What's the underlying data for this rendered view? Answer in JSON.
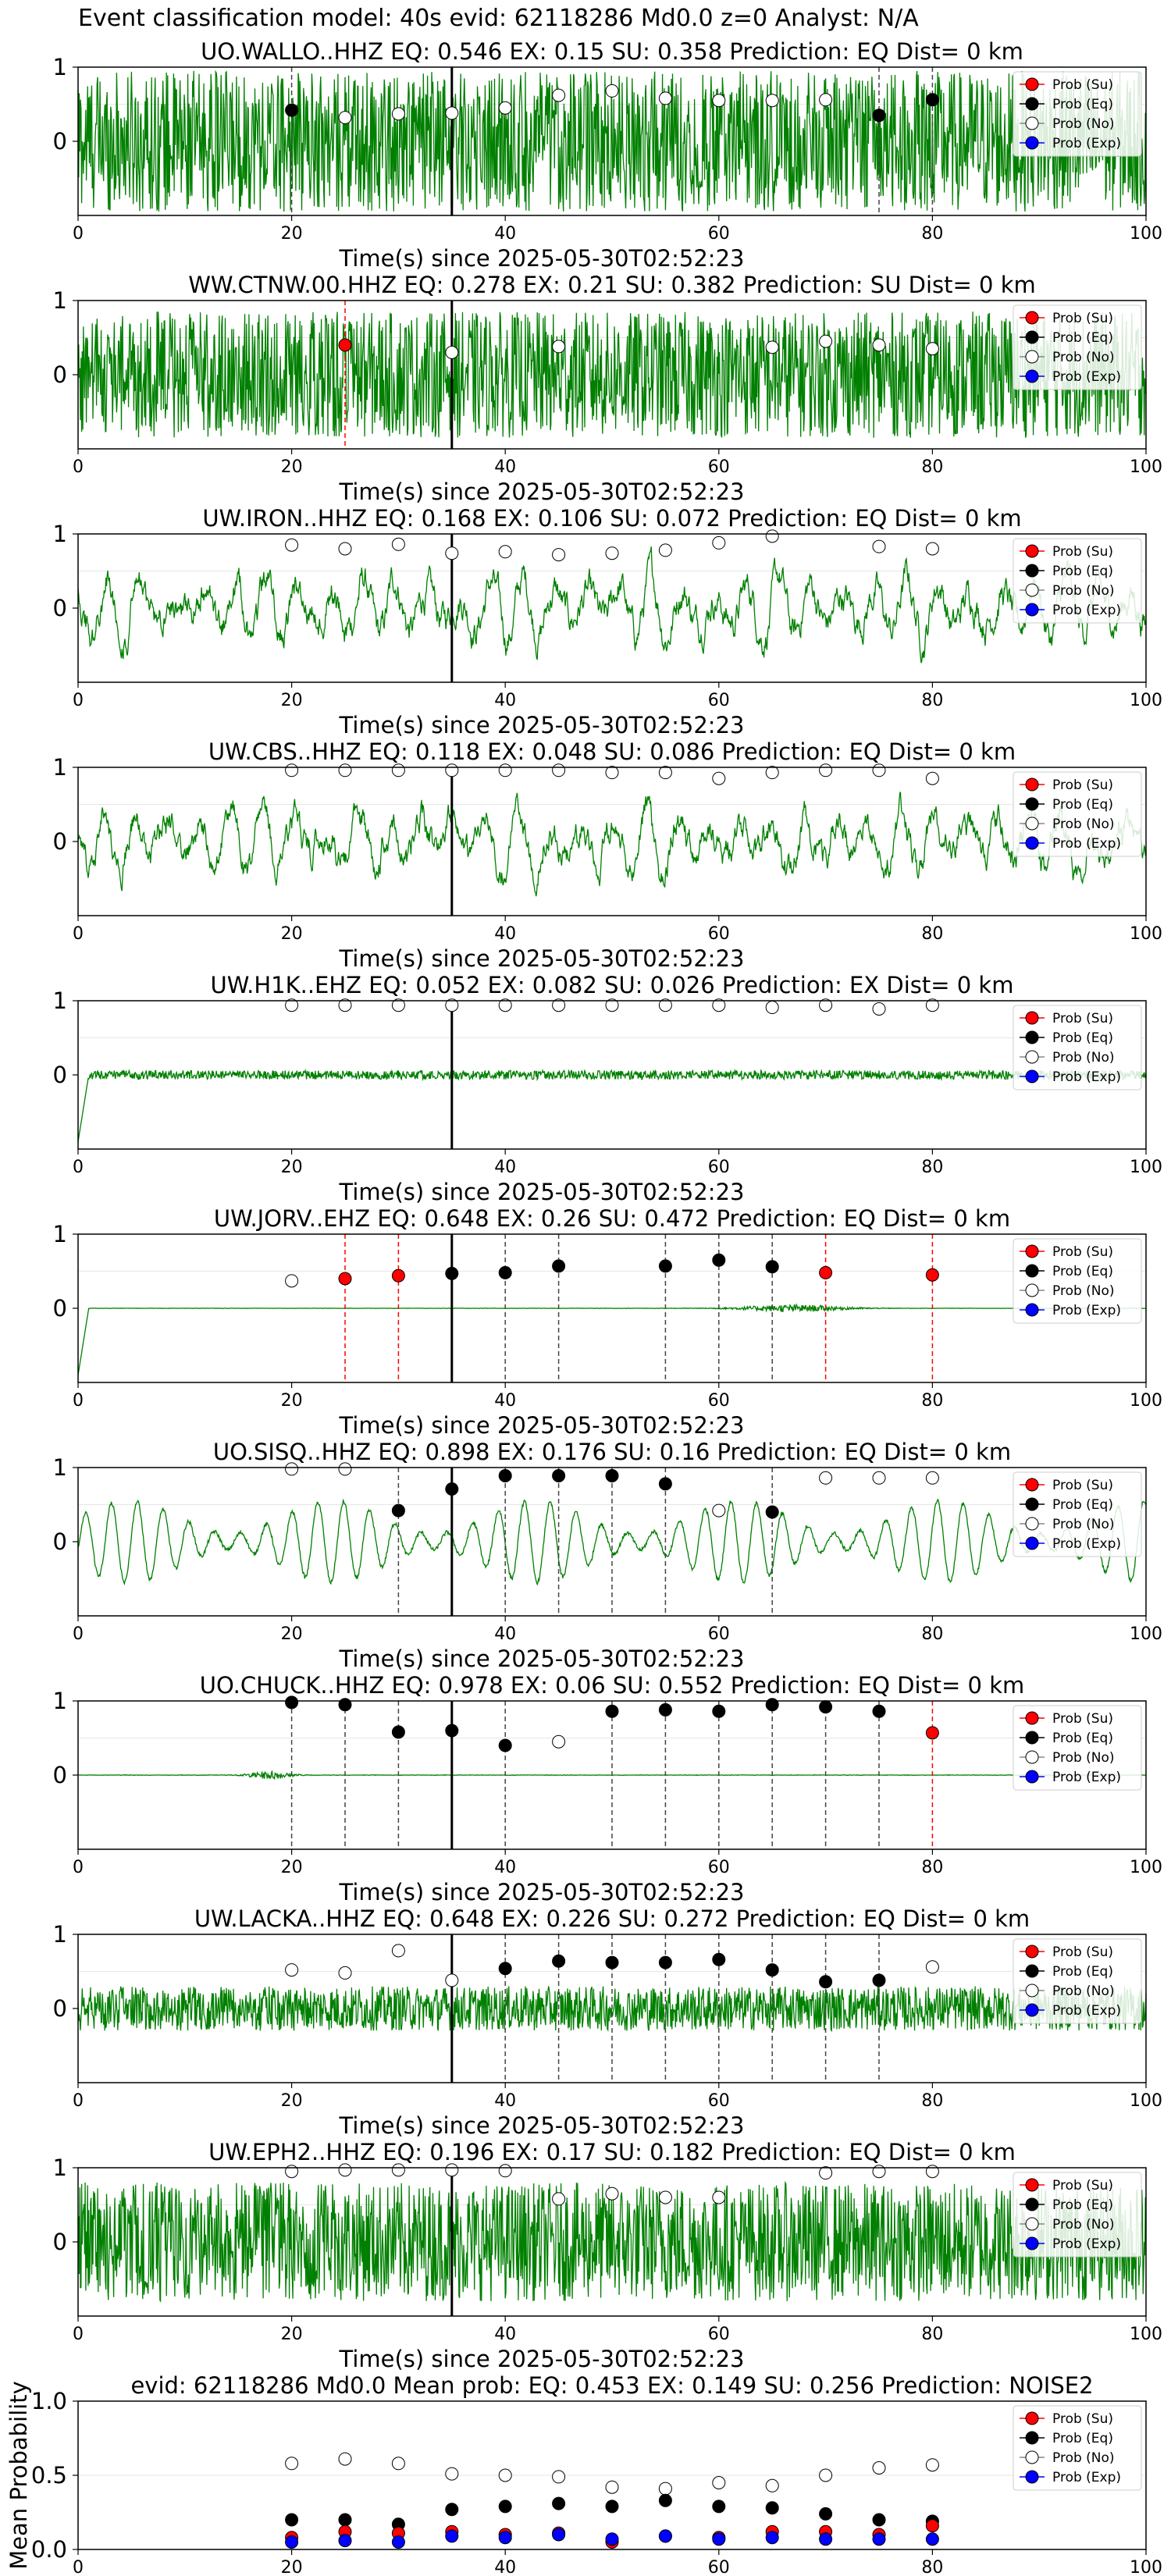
{
  "suptitle": "Event classification model: 40s evid: 62118286 Md0.0 z=0 Analyst: N/A",
  "xlabel_common": "Time(s) since 2025-05-30T02:52:23",
  "legend_labels": [
    "Prob (Su)",
    "Prob (Eq)",
    "Prob (No)",
    "Prob (Exp)"
  ],
  "colors": {
    "su": "#ff0000",
    "eq": "#000000",
    "no": "#ffffff",
    "exp": "#0000ff",
    "trace": "#008000",
    "frame": "#000000"
  },
  "chart_data": [
    {
      "type": "line",
      "title": "UO.WALLO..HHZ   EQ: 0.546  EX: 0.15  SU: 0.358   Prediction: EQ    Dist= 0 km",
      "station": "UO.WALLO..HHZ",
      "noise_style": "hf",
      "amp": 0.95,
      "xlim": [
        0,
        100
      ],
      "ylim": [
        -1,
        1
      ],
      "xticks": [
        0,
        20,
        40,
        60,
        80,
        100
      ],
      "yticks": [
        0,
        1
      ],
      "xlabel": "Time(s) since 2025-05-30T02:52:23",
      "origin_time": 35,
      "points": [
        {
          "x": 20,
          "y": 0.42,
          "c": "eq"
        },
        {
          "x": 25,
          "y": 0.32,
          "c": "no"
        },
        {
          "x": 30,
          "y": 0.37,
          "c": "no"
        },
        {
          "x": 35,
          "y": 0.38,
          "c": "no"
        },
        {
          "x": 40,
          "y": 0.45,
          "c": "no"
        },
        {
          "x": 45,
          "y": 0.62,
          "c": "no"
        },
        {
          "x": 50,
          "y": 0.68,
          "c": "no"
        },
        {
          "x": 55,
          "y": 0.58,
          "c": "no"
        },
        {
          "x": 60,
          "y": 0.55,
          "c": "no"
        },
        {
          "x": 65,
          "y": 0.55,
          "c": "no"
        },
        {
          "x": 70,
          "y": 0.56,
          "c": "no"
        },
        {
          "x": 75,
          "y": 0.35,
          "c": "eq"
        },
        {
          "x": 80,
          "y": 0.56,
          "c": "eq"
        }
      ]
    },
    {
      "type": "line",
      "title": "WW.CTNW.00.HHZ   EQ: 0.278  EX: 0.21  SU: 0.382   Prediction: SU    Dist= 0 km",
      "station": "WW.CTNW.00.HHZ",
      "noise_style": "hf",
      "amp": 0.85,
      "xlim": [
        0,
        100
      ],
      "ylim": [
        -1,
        1
      ],
      "xticks": [
        0,
        20,
        40,
        60,
        80,
        100
      ],
      "yticks": [
        0,
        1
      ],
      "xlabel": "Time(s) since 2025-05-30T02:52:23",
      "origin_time": 35,
      "points": [
        {
          "x": 25,
          "y": 0.4,
          "c": "su"
        },
        {
          "x": 35,
          "y": 0.3,
          "c": "no"
        },
        {
          "x": 45,
          "y": 0.38,
          "c": "no"
        },
        {
          "x": 65,
          "y": 0.37,
          "c": "no"
        },
        {
          "x": 70,
          "y": 0.45,
          "c": "no"
        },
        {
          "x": 75,
          "y": 0.4,
          "c": "no"
        },
        {
          "x": 80,
          "y": 0.35,
          "c": "no"
        }
      ]
    },
    {
      "type": "line",
      "title": "UW.IRON..HHZ   EQ: 0.168  EX: 0.106  SU: 0.072   Prediction: EQ    Dist= 0 km",
      "station": "UW.IRON..HHZ",
      "noise_style": "mf",
      "amp": 0.8,
      "xlim": [
        0,
        100
      ],
      "ylim": [
        -1,
        1
      ],
      "xticks": [
        0,
        20,
        40,
        60,
        80,
        100
      ],
      "yticks": [
        0,
        1
      ],
      "xlabel": "Time(s) since 2025-05-30T02:52:23",
      "origin_time": 35,
      "points": [
        {
          "x": 20,
          "y": 0.85,
          "c": "no"
        },
        {
          "x": 25,
          "y": 0.8,
          "c": "no"
        },
        {
          "x": 30,
          "y": 0.86,
          "c": "no"
        },
        {
          "x": 35,
          "y": 0.74,
          "c": "no"
        },
        {
          "x": 40,
          "y": 0.76,
          "c": "no"
        },
        {
          "x": 45,
          "y": 0.72,
          "c": "no"
        },
        {
          "x": 50,
          "y": 0.74,
          "c": "no"
        },
        {
          "x": 55,
          "y": 0.78,
          "c": "no"
        },
        {
          "x": 60,
          "y": 0.88,
          "c": "no"
        },
        {
          "x": 65,
          "y": 0.97,
          "c": "no"
        },
        {
          "x": 75,
          "y": 0.83,
          "c": "no"
        },
        {
          "x": 80,
          "y": 0.8,
          "c": "no"
        }
      ]
    },
    {
      "type": "line",
      "title": "UW.CBS..HHZ   EQ: 0.118  EX: 0.048  SU: 0.086   Prediction: EQ    Dist= 0 km",
      "station": "UW.CBS..HHZ",
      "noise_style": "mf",
      "amp": 0.75,
      "xlim": [
        0,
        100
      ],
      "ylim": [
        -1,
        1
      ],
      "xticks": [
        0,
        20,
        40,
        60,
        80,
        100
      ],
      "yticks": [
        0,
        1
      ],
      "xlabel": "Time(s) since 2025-05-30T02:52:23",
      "origin_time": 35,
      "points": [
        {
          "x": 20,
          "y": 0.96,
          "c": "no"
        },
        {
          "x": 25,
          "y": 0.96,
          "c": "no"
        },
        {
          "x": 30,
          "y": 0.96,
          "c": "no"
        },
        {
          "x": 35,
          "y": 0.96,
          "c": "no"
        },
        {
          "x": 40,
          "y": 0.96,
          "c": "no"
        },
        {
          "x": 45,
          "y": 0.96,
          "c": "no"
        },
        {
          "x": 50,
          "y": 0.93,
          "c": "no"
        },
        {
          "x": 55,
          "y": 0.93,
          "c": "no"
        },
        {
          "x": 60,
          "y": 0.85,
          "c": "no"
        },
        {
          "x": 65,
          "y": 0.93,
          "c": "no"
        },
        {
          "x": 70,
          "y": 0.96,
          "c": "no"
        },
        {
          "x": 75,
          "y": 0.96,
          "c": "no"
        },
        {
          "x": 80,
          "y": 0.85,
          "c": "no"
        }
      ]
    },
    {
      "type": "line",
      "title": "UW.H1K..EHZ   EQ: 0.052  EX: 0.082  SU: 0.026   Prediction: EX    Dist= 0 km",
      "station": "UW.H1K..EHZ",
      "noise_style": "flat",
      "amp": 0.06,
      "xlim": [
        0,
        100
      ],
      "ylim": [
        -1,
        1
      ],
      "xticks": [
        0,
        20,
        40,
        60,
        80,
        100
      ],
      "yticks": [
        0,
        1
      ],
      "xlabel": "Time(s) since 2025-05-30T02:52:23",
      "origin_time": 35,
      "points": [
        {
          "x": 20,
          "y": 0.94,
          "c": "no"
        },
        {
          "x": 25,
          "y": 0.94,
          "c": "no"
        },
        {
          "x": 30,
          "y": 0.94,
          "c": "no"
        },
        {
          "x": 35,
          "y": 0.94,
          "c": "no"
        },
        {
          "x": 40,
          "y": 0.94,
          "c": "no"
        },
        {
          "x": 45,
          "y": 0.94,
          "c": "no"
        },
        {
          "x": 50,
          "y": 0.94,
          "c": "no"
        },
        {
          "x": 55,
          "y": 0.94,
          "c": "no"
        },
        {
          "x": 60,
          "y": 0.94,
          "c": "no"
        },
        {
          "x": 65,
          "y": 0.91,
          "c": "no"
        },
        {
          "x": 70,
          "y": 0.94,
          "c": "no"
        },
        {
          "x": 75,
          "y": 0.89,
          "c": "no"
        },
        {
          "x": 80,
          "y": 0.94,
          "c": "no"
        }
      ]
    },
    {
      "type": "line",
      "title": "UW.JORV..EHZ   EQ: 0.648  EX: 0.26  SU: 0.472   Prediction: EQ    Dist= 0 km",
      "station": "UW.JORV..EHZ",
      "noise_style": "burst",
      "amp": 0.05,
      "xlim": [
        0,
        100
      ],
      "ylim": [
        -1,
        1
      ],
      "xticks": [
        0,
        20,
        40,
        60,
        80,
        100
      ],
      "yticks": [
        0,
        1
      ],
      "xlabel": "Time(s) since 2025-05-30T02:52:23",
      "origin_time": 35,
      "points": [
        {
          "x": 20,
          "y": 0.37,
          "c": "no"
        },
        {
          "x": 25,
          "y": 0.4,
          "c": "su"
        },
        {
          "x": 30,
          "y": 0.44,
          "c": "su"
        },
        {
          "x": 35,
          "y": 0.47,
          "c": "eq"
        },
        {
          "x": 40,
          "y": 0.48,
          "c": "eq"
        },
        {
          "x": 45,
          "y": 0.57,
          "c": "eq"
        },
        {
          "x": 55,
          "y": 0.57,
          "c": "eq"
        },
        {
          "x": 60,
          "y": 0.65,
          "c": "eq"
        },
        {
          "x": 65,
          "y": 0.56,
          "c": "eq"
        },
        {
          "x": 70,
          "y": 0.48,
          "c": "su"
        },
        {
          "x": 80,
          "y": 0.45,
          "c": "su"
        }
      ]
    },
    {
      "type": "line",
      "title": "UO.SISQ..HHZ   EQ: 0.898  EX: 0.176  SU: 0.16   Prediction: EQ    Dist= 0 km",
      "station": "UO.SISQ..HHZ",
      "noise_style": "sine",
      "amp": 0.7,
      "xlim": [
        0,
        100
      ],
      "ylim": [
        -1,
        1
      ],
      "xticks": [
        0,
        20,
        40,
        60,
        80,
        100
      ],
      "yticks": [
        0,
        1
      ],
      "xlabel": "Time(s) since 2025-05-30T02:52:23",
      "origin_time": 35,
      "points": [
        {
          "x": 20,
          "y": 0.98,
          "c": "no"
        },
        {
          "x": 25,
          "y": 0.98,
          "c": "no"
        },
        {
          "x": 30,
          "y": 0.42,
          "c": "eq"
        },
        {
          "x": 35,
          "y": 0.71,
          "c": "eq"
        },
        {
          "x": 40,
          "y": 0.89,
          "c": "eq"
        },
        {
          "x": 45,
          "y": 0.89,
          "c": "eq"
        },
        {
          "x": 50,
          "y": 0.89,
          "c": "eq"
        },
        {
          "x": 55,
          "y": 0.78,
          "c": "eq"
        },
        {
          "x": 60,
          "y": 0.42,
          "c": "no"
        },
        {
          "x": 65,
          "y": 0.4,
          "c": "eq"
        },
        {
          "x": 70,
          "y": 0.86,
          "c": "no"
        },
        {
          "x": 75,
          "y": 0.86,
          "c": "no"
        },
        {
          "x": 80,
          "y": 0.86,
          "c": "no"
        }
      ]
    },
    {
      "type": "line",
      "title": "UO.CHUCK..HHZ   EQ: 0.978  EX: 0.06  SU: 0.552   Prediction: EQ    Dist= 0 km",
      "station": "UO.CHUCK..HHZ",
      "noise_style": "spike",
      "amp": 0.06,
      "xlim": [
        0,
        100
      ],
      "ylim": [
        -1,
        1
      ],
      "xticks": [
        0,
        20,
        40,
        60,
        80,
        100
      ],
      "yticks": [
        0,
        1
      ],
      "xlabel": "Time(s) since 2025-05-30T02:52:23",
      "origin_time": 35,
      "points": [
        {
          "x": 20,
          "y": 0.98,
          "c": "eq"
        },
        {
          "x": 25,
          "y": 0.95,
          "c": "eq"
        },
        {
          "x": 30,
          "y": 0.58,
          "c": "eq"
        },
        {
          "x": 35,
          "y": 0.6,
          "c": "eq"
        },
        {
          "x": 40,
          "y": 0.4,
          "c": "eq"
        },
        {
          "x": 45,
          "y": 0.45,
          "c": "no"
        },
        {
          "x": 50,
          "y": 0.86,
          "c": "eq"
        },
        {
          "x": 55,
          "y": 0.88,
          "c": "eq"
        },
        {
          "x": 60,
          "y": 0.86,
          "c": "eq"
        },
        {
          "x": 65,
          "y": 0.95,
          "c": "eq"
        },
        {
          "x": 70,
          "y": 0.92,
          "c": "eq"
        },
        {
          "x": 75,
          "y": 0.86,
          "c": "eq"
        },
        {
          "x": 80,
          "y": 0.57,
          "c": "su"
        }
      ]
    },
    {
      "type": "line",
      "title": "UW.LACKA..HHZ   EQ: 0.648  EX: 0.226  SU: 0.272   Prediction: EQ    Dist= 0 km",
      "station": "UW.LACKA..HHZ",
      "noise_style": "hf",
      "amp": 0.3,
      "xlim": [
        0,
        100
      ],
      "ylim": [
        -1,
        1
      ],
      "xticks": [
        0,
        20,
        40,
        60,
        80,
        100
      ],
      "yticks": [
        0,
        1
      ],
      "xlabel": "Time(s) since 2025-05-30T02:52:23",
      "origin_time": 35,
      "points": [
        {
          "x": 20,
          "y": 0.52,
          "c": "no"
        },
        {
          "x": 25,
          "y": 0.48,
          "c": "no"
        },
        {
          "x": 30,
          "y": 0.78,
          "c": "no"
        },
        {
          "x": 35,
          "y": 0.38,
          "c": "no"
        },
        {
          "x": 40,
          "y": 0.54,
          "c": "eq"
        },
        {
          "x": 45,
          "y": 0.64,
          "c": "eq"
        },
        {
          "x": 50,
          "y": 0.62,
          "c": "eq"
        },
        {
          "x": 55,
          "y": 0.62,
          "c": "eq"
        },
        {
          "x": 60,
          "y": 0.66,
          "c": "eq"
        },
        {
          "x": 65,
          "y": 0.52,
          "c": "eq"
        },
        {
          "x": 70,
          "y": 0.36,
          "c": "eq"
        },
        {
          "x": 75,
          "y": 0.38,
          "c": "eq"
        },
        {
          "x": 80,
          "y": 0.56,
          "c": "no"
        }
      ]
    },
    {
      "type": "line",
      "title": "UW.EPH2..HHZ   EQ: 0.196  EX: 0.17  SU: 0.182   Prediction: EQ    Dist= 0 km",
      "station": "UW.EPH2..HHZ",
      "noise_style": "hf",
      "amp": 0.8,
      "xlim": [
        0,
        100
      ],
      "ylim": [
        -1,
        1
      ],
      "xticks": [
        0,
        20,
        40,
        60,
        80,
        100
      ],
      "yticks": [
        0,
        1
      ],
      "xlabel": "Time(s) since 2025-05-30T02:52:23",
      "origin_time": 35,
      "points": [
        {
          "x": 20,
          "y": 0.95,
          "c": "no"
        },
        {
          "x": 25,
          "y": 0.97,
          "c": "no"
        },
        {
          "x": 30,
          "y": 0.97,
          "c": "no"
        },
        {
          "x": 35,
          "y": 0.97,
          "c": "no"
        },
        {
          "x": 40,
          "y": 0.96,
          "c": "no"
        },
        {
          "x": 45,
          "y": 0.58,
          "c": "no"
        },
        {
          "x": 50,
          "y": 0.65,
          "c": "no"
        },
        {
          "x": 55,
          "y": 0.6,
          "c": "no"
        },
        {
          "x": 60,
          "y": 0.6,
          "c": "no"
        },
        {
          "x": 70,
          "y": 0.93,
          "c": "no"
        },
        {
          "x": 75,
          "y": 0.95,
          "c": "no"
        },
        {
          "x": 80,
          "y": 0.95,
          "c": "no"
        }
      ]
    },
    {
      "type": "scatter",
      "title": "evid: 62118286  Md0.0   Mean prob:   EQ: 0.453  EX: 0.149  SU: 0.256   Prediction: NOISE2",
      "ylabel": "Mean Probability",
      "xlabel": "",
      "xlim": [
        0,
        100
      ],
      "ylim": [
        0,
        1
      ],
      "xticks": [
        0,
        20,
        40,
        60,
        80,
        100
      ],
      "yticks": [
        0.0,
        0.5,
        1.0
      ],
      "x": [
        20,
        25,
        30,
        35,
        40,
        45,
        50,
        55,
        60,
        65,
        70,
        75,
        80
      ],
      "series": [
        {
          "c": "no",
          "values": [
            0.58,
            0.61,
            0.58,
            0.51,
            0.5,
            0.49,
            0.42,
            0.41,
            0.45,
            0.43,
            0.5,
            0.55,
            0.57
          ]
        },
        {
          "c": "eq",
          "values": [
            0.2,
            0.2,
            0.17,
            0.27,
            0.29,
            0.31,
            0.29,
            0.33,
            0.29,
            0.28,
            0.24,
            0.2,
            0.19
          ]
        },
        {
          "c": "su",
          "values": [
            0.08,
            0.12,
            0.11,
            0.12,
            0.1,
            0.11,
            0.05,
            0.09,
            0.08,
            0.12,
            0.12,
            0.1,
            0.16
          ]
        },
        {
          "c": "exp",
          "values": [
            0.05,
            0.06,
            0.05,
            0.09,
            0.08,
            0.1,
            0.07,
            0.09,
            0.07,
            0.08,
            0.07,
            0.07,
            0.07
          ]
        }
      ]
    }
  ]
}
